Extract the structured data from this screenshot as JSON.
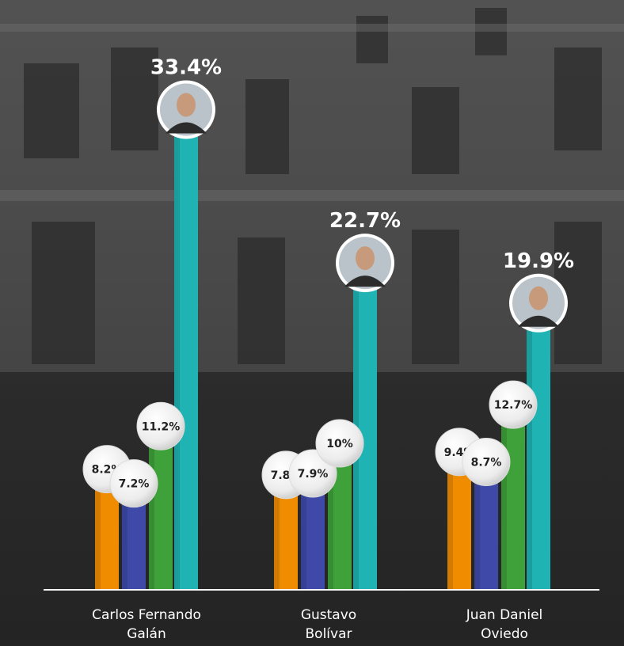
{
  "chart_data": {
    "type": "bar",
    "categories": [
      {
        "line1": "Carlos Fernando",
        "line2": "Galán",
        "photo": "avatar-galan"
      },
      {
        "line1": "Gustavo",
        "line2": "Bolívar",
        "photo": "avatar-bolivar"
      },
      {
        "line1": "Juan Daniel",
        "line2": "Oviedo",
        "photo": "avatar-oviedo"
      }
    ],
    "series": [
      {
        "color": "#f08c00",
        "values": [
          8.2,
          7.8,
          9.4
        ],
        "labels": [
          "8.2%",
          "7.8%",
          "9.4%"
        ]
      },
      {
        "color": "#3f4aa8",
        "values": [
          7.2,
          7.9,
          8.7
        ],
        "labels": [
          "7.2%",
          "7.9%",
          "8.7%"
        ]
      },
      {
        "color": "#3ea13a",
        "values": [
          11.2,
          10,
          12.7
        ],
        "labels": [
          "11.2%",
          "10%",
          "12.7%"
        ]
      },
      {
        "color": "#1fb3b3",
        "values": [
          33.4,
          22.7,
          19.9
        ],
        "labels": [
          "33.4%",
          "22.7%",
          "19.9%"
        ]
      }
    ],
    "ylim": [
      0,
      35
    ],
    "grid": false,
    "legend": "none"
  }
}
